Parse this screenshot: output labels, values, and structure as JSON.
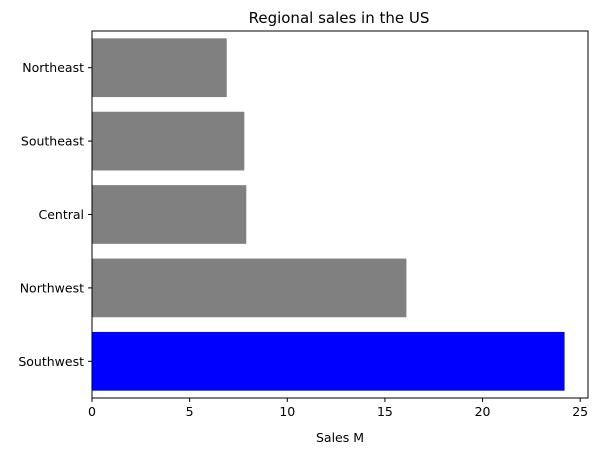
{
  "chart_data": {
    "type": "bar",
    "orientation": "horizontal",
    "title": "Regional sales in the US",
    "xlabel": "Sales M",
    "ylabel": "",
    "xlim": [
      0,
      25.4
    ],
    "xticks": [
      0,
      5,
      10,
      15,
      20,
      25
    ],
    "categories": [
      "Southwest",
      "Northwest",
      "Central",
      "Southeast",
      "Northeast"
    ],
    "values": [
      24.2,
      16.1,
      7.9,
      7.8,
      6.9
    ],
    "bar_colors": [
      "#0000ff",
      "#808080",
      "#808080",
      "#808080",
      "#808080"
    ],
    "grid": false,
    "legend": "none"
  }
}
